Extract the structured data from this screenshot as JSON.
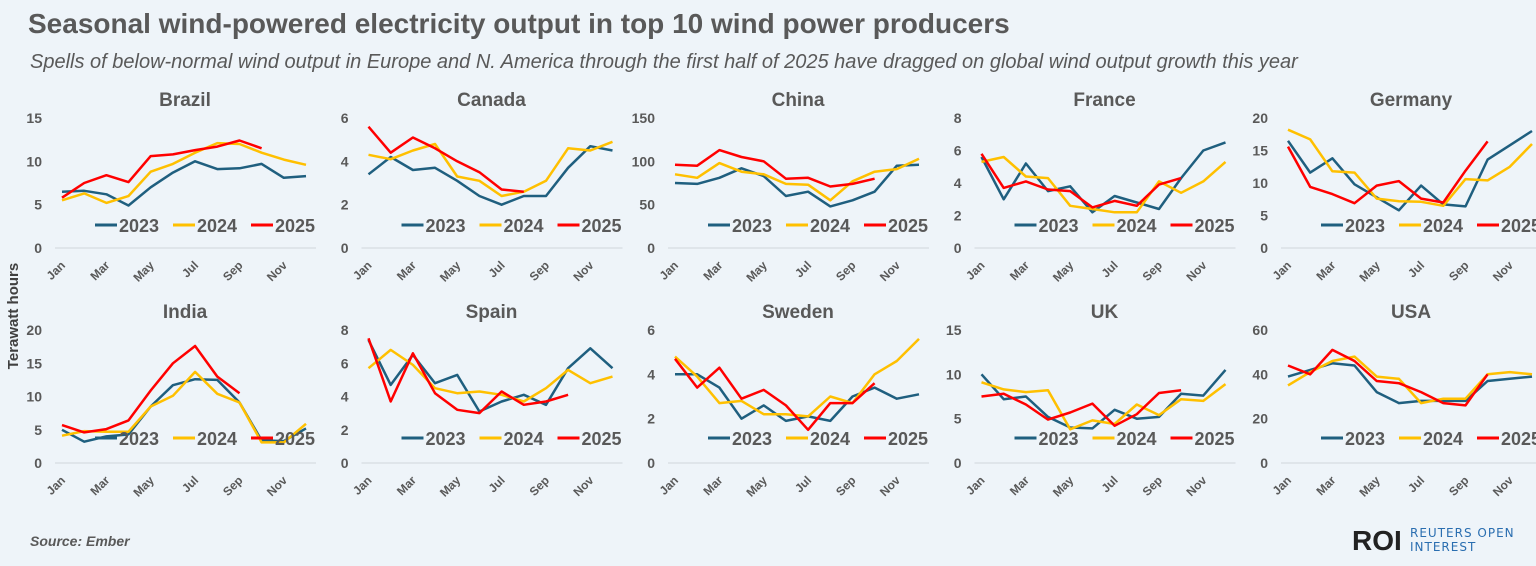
{
  "title": "Seasonal wind-powered electricity output in top 10 wind power producers",
  "subtitle": "Spells of below-normal wind output in Europe and N. America through the first half of 2025 have dragged on global wind output growth this year",
  "ylabel": "Terawatt hours",
  "source": "Source:  Ember",
  "logo": {
    "mark": "ROI",
    "line1": "REUTERS OPEN",
    "line2": "INTEREST"
  },
  "colors": {
    "2023": "#1f5f7f",
    "2024": "#ffc000",
    "2025": "#ff0000"
  },
  "chart_data": {
    "type": "line",
    "months": [
      "Jan",
      "Feb",
      "Mar",
      "Apr",
      "May",
      "Jun",
      "Jul",
      "Aug",
      "Sep",
      "Oct",
      "Nov",
      "Dec"
    ],
    "month_tick_labels": [
      "Jan",
      "Mar",
      "May",
      "Jul",
      "Sep",
      "Nov"
    ],
    "legend": [
      "2023",
      "2024",
      "2025"
    ],
    "legend_placement": "bottom-right inside plot",
    "grid": false,
    "panels": [
      {
        "title": "Brazil",
        "ylim": [
          0,
          15
        ],
        "yticks": [
          0,
          5,
          10,
          15
        ],
        "series": [
          {
            "name": "2023",
            "values": [
              6.5,
              6.6,
              6.2,
              4.9,
              7,
              8.7,
              10,
              9.1,
              9.2,
              9.7,
              8.1,
              8.3
            ]
          },
          {
            "name": "2024",
            "values": [
              5.5,
              6.3,
              5.2,
              6,
              8.8,
              9.7,
              11,
              12.1,
              12,
              11,
              10.2,
              9.6
            ]
          },
          {
            "name": "2025",
            "values": [
              5.8,
              7.5,
              8.4,
              7.6,
              10.6,
              10.8,
              11.3,
              11.7,
              12.4,
              11.5
            ]
          }
        ]
      },
      {
        "title": "Canada",
        "ylim": [
          0,
          6
        ],
        "yticks": [
          0,
          2,
          4,
          6
        ],
        "series": [
          {
            "name": "2023",
            "values": [
              3.4,
              4.2,
              3.6,
              3.7,
              3.1,
              2.4,
              2,
              2.4,
              2.4,
              3.7,
              4.7,
              4.5
            ]
          },
          {
            "name": "2024",
            "values": [
              4.3,
              4.1,
              4.5,
              4.8,
              3.3,
              3.1,
              2.4,
              2.6,
              3.1,
              4.6,
              4.5,
              4.9
            ]
          },
          {
            "name": "2025",
            "values": [
              5.6,
              4.4,
              5.1,
              4.6,
              4.0,
              3.5,
              2.7,
              2.6
            ]
          }
        ]
      },
      {
        "title": "China",
        "ylim": [
          0,
          150
        ],
        "yticks": [
          0,
          50,
          100,
          150
        ],
        "series": [
          {
            "name": "2023",
            "values": [
              75,
              74,
              81,
              92,
              83,
              60,
              65,
              48,
              55,
              65,
              95,
              96
            ]
          },
          {
            "name": "2024",
            "values": [
              85,
              81,
              98,
              88,
              85,
              74,
              73,
              55,
              77,
              88,
              91,
              103
            ]
          },
          {
            "name": "2025",
            "values": [
              96,
              95,
              113,
              105,
              100,
              80,
              81,
              71,
              74,
              80
            ]
          }
        ]
      },
      {
        "title": "France",
        "ylim": [
          0,
          8
        ],
        "yticks": [
          0,
          2,
          4,
          6,
          8
        ],
        "series": [
          {
            "name": "2023",
            "values": [
              5.6,
              3.0,
              5.2,
              3.5,
              3.8,
              2.2,
              3.2,
              2.8,
              2.4,
              4.3,
              6.0,
              6.5
            ]
          },
          {
            "name": "2024",
            "values": [
              5.3,
              5.6,
              4.4,
              4.3,
              2.6,
              2.4,
              2.2,
              2.2,
              4.1,
              3.4,
              4.1,
              5.3
            ]
          },
          {
            "name": "2025",
            "values": [
              5.8,
              3.7,
              4.1,
              3.6,
              3.5,
              2.5,
              2.9,
              2.6,
              3.9,
              4.3
            ]
          }
        ]
      },
      {
        "title": "Germany",
        "ylim": [
          0,
          20
        ],
        "yticks": [
          0,
          5,
          10,
          15,
          20
        ],
        "series": [
          {
            "name": "2023",
            "values": [
              16.5,
              11.6,
              13.8,
              9.8,
              7.8,
              5.8,
              9.6,
              6.7,
              6.4,
              13.6,
              15.8,
              18
            ]
          },
          {
            "name": "2024",
            "values": [
              18.2,
              16.7,
              11.8,
              11.6,
              7.6,
              7.2,
              7.1,
              6.5,
              10.6,
              10.4,
              12.5,
              16
            ]
          },
          {
            "name": "2025",
            "values": [
              15.6,
              9.4,
              8.3,
              6.9,
              9.6,
              10.3,
              7.6,
              7.0,
              11.9,
              16.4
            ]
          }
        ]
      },
      {
        "title": "India",
        "ylim": [
          0,
          20
        ],
        "yticks": [
          0,
          5,
          10,
          15,
          20
        ],
        "series": [
          {
            "name": "2023",
            "values": [
              5,
              3.2,
              4,
              4.3,
              8.5,
              11.7,
              12.6,
              12.5,
              9.1,
              3.4,
              3.3,
              5.2
            ]
          },
          {
            "name": "2024",
            "values": [
              4.1,
              4.8,
              4.7,
              4.7,
              8.5,
              10.1,
              13.7,
              10.4,
              9.1,
              3.1,
              3.1,
              5.9
            ]
          },
          {
            "name": "2025",
            "values": [
              5.7,
              4.6,
              5.1,
              6.4,
              10.9,
              15,
              17.6,
              13,
              10.5
            ]
          }
        ]
      },
      {
        "title": "Spain",
        "ylim": [
          0,
          8
        ],
        "yticks": [
          0,
          2,
          4,
          6,
          8
        ],
        "series": [
          {
            "name": "2023",
            "values": [
              7.4,
              4.7,
              6.5,
              4.8,
              5.3,
              3.1,
              3.7,
              4.1,
              3.5,
              5.7,
              6.9,
              5.7
            ]
          },
          {
            "name": "2024",
            "values": [
              5.7,
              6.8,
              5.9,
              4.5,
              4.2,
              4.3,
              4.1,
              3.7,
              4.5,
              5.6,
              4.8,
              5.2
            ]
          },
          {
            "name": "2025",
            "values": [
              7.5,
              3.7,
              6.6,
              4.2,
              3.2,
              3.0,
              4.3,
              3.5,
              3.7,
              4.1
            ]
          }
        ]
      },
      {
        "title": "Sweden",
        "ylim": [
          0,
          6
        ],
        "yticks": [
          0,
          2,
          4,
          6
        ],
        "series": [
          {
            "name": "2023",
            "values": [
              4.0,
              4.0,
              3.4,
              2.0,
              2.6,
              1.9,
              2.1,
              1.9,
              3.0,
              3.4,
              2.9,
              3.1
            ]
          },
          {
            "name": "2024",
            "values": [
              4.8,
              3.9,
              2.7,
              2.8,
              2.2,
              2.2,
              2.1,
              3.0,
              2.7,
              4.0,
              4.6,
              5.6
            ]
          },
          {
            "name": "2025",
            "values": [
              4.7,
              3.4,
              4.3,
              2.9,
              3.3,
              2.6,
              1.5,
              2.7,
              2.7,
              3.6
            ]
          }
        ]
      },
      {
        "title": "UK",
        "ylim": [
          0,
          15
        ],
        "yticks": [
          0,
          5,
          10,
          15
        ],
        "series": [
          {
            "name": "2023",
            "values": [
              10,
              7.2,
              7.5,
              5.2,
              4.0,
              3.9,
              6.0,
              5.0,
              5.2,
              7.8,
              7.6,
              10.5
            ]
          },
          {
            "name": "2024",
            "values": [
              9.1,
              8.3,
              8.0,
              8.2,
              3.8,
              4.8,
              4.4,
              6.6,
              5.4,
              7.2,
              7.0,
              8.9
            ]
          },
          {
            "name": "2025",
            "values": [
              7.5,
              7.8,
              6.6,
              4.9,
              5.7,
              6.7,
              4.2,
              5.5,
              7.9,
              8.2
            ]
          }
        ]
      },
      {
        "title": "USA",
        "ylim": [
          0,
          60
        ],
        "yticks": [
          0,
          20,
          40,
          60
        ],
        "series": [
          {
            "name": "2023",
            "values": [
              39,
              42,
              45,
              44,
              32,
              27,
              28,
              28,
              28,
              37,
              38,
              39
            ]
          },
          {
            "name": "2024",
            "values": [
              35,
              41,
              46,
              48,
              39,
              38,
              27,
              29,
              29,
              40,
              41,
              40
            ]
          },
          {
            "name": "2025",
            "values": [
              44,
              40,
              51,
              46,
              37,
              36,
              32,
              27,
              26,
              40
            ]
          }
        ]
      }
    ]
  }
}
